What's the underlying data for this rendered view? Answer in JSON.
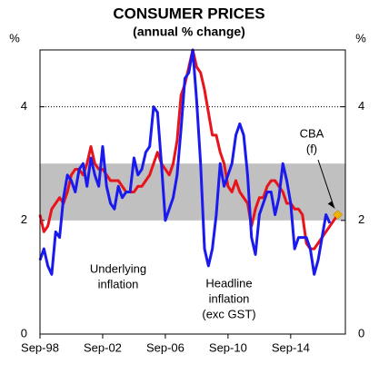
{
  "chart_data": {
    "type": "line",
    "title": "CONSUMER PRICES",
    "subtitle": "(annual % change)",
    "y_unit_left": "%",
    "y_unit_right": "%",
    "categories": [
      "Sep-98",
      null,
      null,
      null,
      null,
      null,
      null,
      null,
      null,
      null,
      null,
      null,
      null,
      null,
      null,
      null,
      "Sep-02",
      null,
      null,
      null,
      null,
      null,
      null,
      null,
      null,
      null,
      null,
      null,
      null,
      null,
      null,
      null,
      "Sep-06",
      null,
      null,
      null,
      null,
      null,
      null,
      null,
      null,
      null,
      null,
      null,
      null,
      null,
      null,
      null,
      "Sep-10",
      null,
      null,
      null,
      null,
      null,
      null,
      null,
      null,
      null,
      null,
      null,
      null,
      null,
      null,
      null,
      "Sep-14",
      null,
      null,
      null,
      null,
      null,
      null,
      null,
      null,
      null,
      null,
      null,
      null
    ],
    "series": [
      {
        "name": "Underlying inflation",
        "color": "#e8141c",
        "values": [
          2.1,
          1.8,
          1.9,
          2.2,
          2.3,
          2.4,
          2.3,
          2.5,
          2.8,
          2.9,
          2.9,
          2.8,
          3.0,
          3.3,
          3.0,
          2.9,
          2.9,
          2.8,
          2.7,
          2.7,
          2.7,
          2.6,
          2.5,
          2.5,
          2.5,
          2.6,
          2.6,
          2.7,
          2.8,
          3.0,
          3.2,
          3.0,
          2.9,
          2.8,
          3.0,
          3.4,
          4.2,
          4.4,
          4.7,
          5.0,
          4.7,
          4.6,
          4.3,
          3.9,
          3.5,
          3.5,
          3.2,
          3.0,
          2.6,
          2.5,
          2.7,
          2.5,
          2.4,
          2.3,
          1.9,
          2.2,
          2.4,
          2.4,
          2.6,
          2.7,
          2.7,
          2.6,
          2.5,
          2.3,
          2.3,
          2.2,
          2.2,
          2.1,
          1.6,
          1.5,
          1.5,
          1.6,
          1.7,
          1.8,
          1.9,
          2.0,
          2.1
        ]
      },
      {
        "name": "Headline inflation (exc GST)",
        "color": "#1a1aee",
        "values": [
          1.3,
          1.5,
          1.2,
          1.05,
          1.8,
          1.7,
          2.4,
          2.8,
          2.7,
          2.5,
          2.9,
          3.0,
          2.6,
          3.1,
          2.8,
          2.6,
          3.3,
          2.6,
          2.3,
          2.2,
          2.6,
          2.4,
          2.5,
          2.5,
          3.1,
          2.8,
          2.9,
          3.2,
          3.3,
          4.0,
          3.9,
          3.0,
          2.0,
          2.2,
          2.4,
          2.8,
          3.6,
          4.5,
          4.6,
          5.0,
          4.1,
          3.0,
          1.5,
          1.2,
          1.5,
          2.1,
          3.0,
          2.6,
          2.8,
          3.0,
          3.5,
          3.7,
          3.5,
          2.8,
          1.7,
          1.4,
          2.1,
          2.3,
          2.5,
          2.5,
          2.1,
          2.4,
          3.0,
          2.7,
          2.3,
          1.5,
          1.7,
          1.7,
          1.7,
          1.5,
          1.05,
          1.3,
          1.7,
          2.1,
          1.95,
          null,
          null
        ]
      }
    ],
    "ylim": [
      0,
      5
    ],
    "yticks": [
      0,
      2,
      4
    ],
    "target_band": [
      2,
      3
    ],
    "band_color": "#c0c0c0",
    "reference_line": 4,
    "forecast": {
      "value": 2.1,
      "color": "#f0b400"
    },
    "annotations": [
      {
        "lines": [
          "Underlying",
          "inflation"
        ],
        "color": "#e8141c"
      },
      {
        "lines": [
          "Headline",
          "inflation",
          "(exc GST)"
        ],
        "color": "#1a1aee"
      },
      {
        "lines": [
          "CBA",
          "(f)"
        ],
        "color": "#000000"
      }
    ]
  }
}
